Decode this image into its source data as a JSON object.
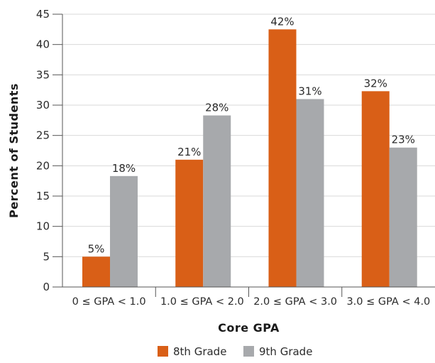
{
  "chart_data": {
    "type": "bar",
    "categories": [
      "0 ≤ GPA < 1.0",
      "1.0 ≤ GPA < 2.0",
      "2.0 ≤ GPA < 3.0",
      "3.0 ≤ GPA < 4.0"
    ],
    "series": [
      {
        "name": "8th Grade",
        "values": [
          5,
          21,
          42.5,
          32.3
        ],
        "data_labels": [
          "5%",
          "21%",
          "42%",
          "32%"
        ],
        "color": "#d95f17"
      },
      {
        "name": "9th Grade",
        "values": [
          18.3,
          28.3,
          31,
          23
        ],
        "data_labels": [
          "18%",
          "28%",
          "31%",
          "23%"
        ],
        "color": "#a7a9ac"
      }
    ],
    "title": "",
    "xlabel": "Core GPA",
    "ylabel": "Percent of Students",
    "ylim": [
      0,
      45
    ],
    "yticks": [
      0,
      5,
      10,
      15,
      20,
      25,
      30,
      35,
      40,
      45
    ],
    "grid": true,
    "legend_position": "bottom"
  }
}
